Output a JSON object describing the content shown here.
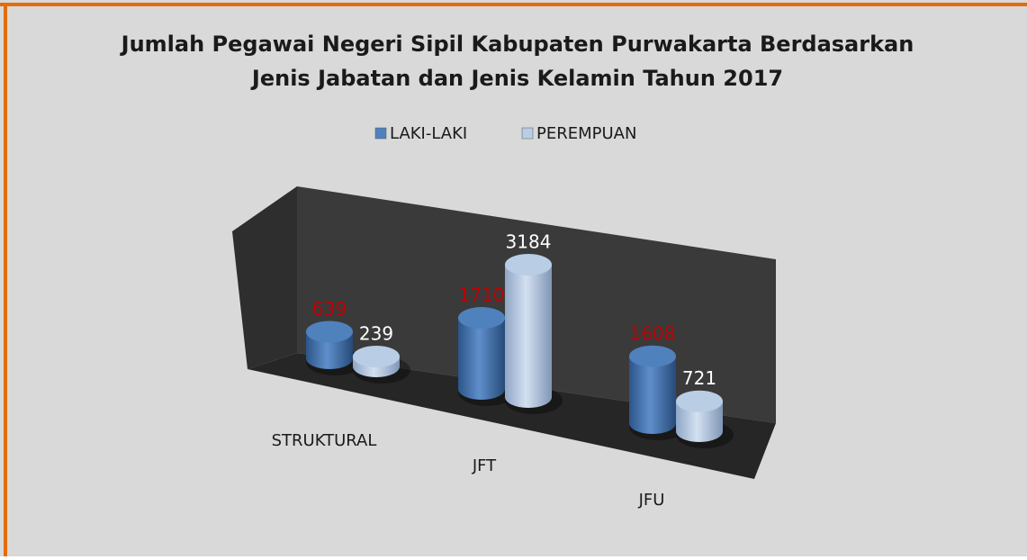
{
  "chart_data": {
    "type": "bar3d",
    "title": "Jumlah Pegawai Negeri Sipil Kabupaten Purwakarta Berdasarkan",
    "subtitle": "Jenis Jabatan dan Jenis Kelamin Tahun 2017",
    "categories": [
      "STRUKTURAL",
      "JFT",
      "JFU"
    ],
    "series": [
      {
        "name": "LAKI-LAKI",
        "color": "#4f81bd",
        "label_color": "#c00000",
        "values": [
          639,
          1710,
          1608
        ]
      },
      {
        "name": "PEREMPUAN",
        "color": "#b9cde5",
        "label_color": "#ffffff",
        "values": [
          239,
          3184,
          721
        ]
      }
    ],
    "legend": "top"
  }
}
